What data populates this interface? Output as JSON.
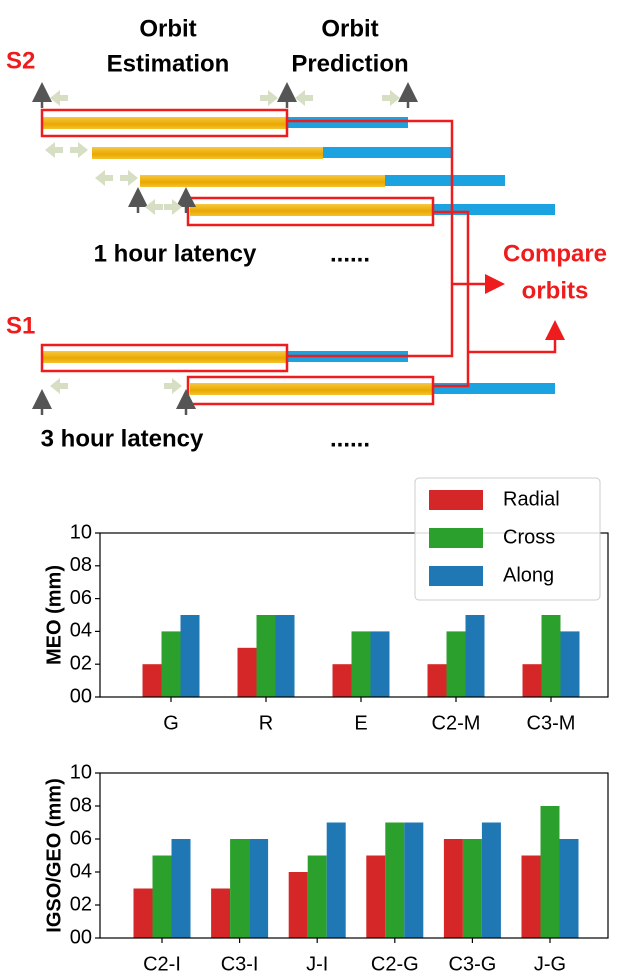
{
  "diagram": {
    "estimation": [
      "Orbit",
      "Estimation"
    ],
    "prediction": [
      "Orbit",
      "Prediction"
    ],
    "s2": "S2",
    "s1": "S1",
    "latency1": "1 hour latency",
    "latency3": "3 hour latency",
    "dots1": "......",
    "dots3": "......",
    "compare": [
      "Compare",
      "orbits"
    ]
  },
  "chart_data": [
    {
      "type": "bar",
      "ylabel": "MEO (mm)",
      "categories": [
        "G",
        "R",
        "E",
        "C2-M",
        "C3-M"
      ],
      "series": [
        {
          "name": "Radial",
          "color": "#d62728",
          "values": [
            2,
            3,
            2,
            2,
            2
          ]
        },
        {
          "name": "Cross",
          "color": "#2ca02c",
          "values": [
            4,
            5,
            4,
            4,
            5
          ]
        },
        {
          "name": "Along",
          "color": "#1f77b4",
          "values": [
            5,
            5,
            4,
            5,
            4
          ]
        }
      ],
      "ylim": [
        0,
        10
      ],
      "yticks": [
        {
          "value": 0,
          "label": "00"
        },
        {
          "value": 2,
          "label": "02"
        },
        {
          "value": 4,
          "label": "04"
        },
        {
          "value": 6,
          "label": "06"
        },
        {
          "value": 8,
          "label": "08"
        },
        10
      ],
      "legend": "upper right"
    },
    {
      "type": "bar",
      "ylabel": "IGSO/GEO (mm)",
      "categories": [
        "C2-I",
        "C3-I",
        "J-I",
        "C2-G",
        "C3-G",
        "J-G"
      ],
      "series": [
        {
          "name": "Radial",
          "color": "#d62728",
          "values": [
            3,
            3,
            4,
            5,
            6,
            5
          ]
        },
        {
          "name": "Cross",
          "color": "#2ca02c",
          "values": [
            5,
            6,
            5,
            7,
            6,
            8
          ]
        },
        {
          "name": "Along",
          "color": "#1f77b4",
          "values": [
            6,
            6,
            7,
            7,
            7,
            6
          ]
        }
      ],
      "ylim": [
        0,
        10
      ],
      "yticks": [
        {
          "value": 0,
          "label": "00"
        },
        {
          "value": 2,
          "label": "02"
        },
        {
          "value": 4,
          "label": "04"
        },
        {
          "value": 6,
          "label": "06"
        },
        {
          "value": 8,
          "label": "08"
        },
        10
      ]
    }
  ]
}
